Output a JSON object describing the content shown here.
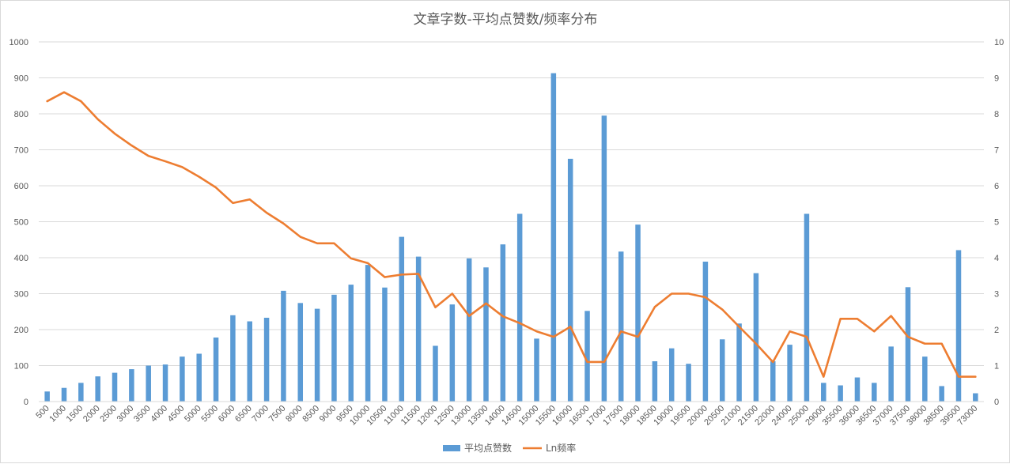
{
  "chart_data": {
    "type": "bar",
    "title": "文章字数-平均点赞数/频率分布",
    "xlabel": "",
    "ylabel": "",
    "ylim": [
      0,
      1000
    ],
    "y2lim": [
      0,
      10
    ],
    "y_ticks": [
      "0",
      "100",
      "200",
      "300",
      "400",
      "500",
      "600",
      "700",
      "800",
      "900",
      "1000"
    ],
    "y2_ticks": [
      "0",
      "1",
      "2",
      "3",
      "4",
      "5",
      "6",
      "7",
      "8",
      "9",
      "10"
    ],
    "grid": true,
    "legend_position": "bottom",
    "categories": [
      "500",
      "1000",
      "1500",
      "2000",
      "2500",
      "3000",
      "3500",
      "4000",
      "4500",
      "5000",
      "5500",
      "6000",
      "6500",
      "7000",
      "7500",
      "8000",
      "8500",
      "9000",
      "9500",
      "10000",
      "10500",
      "11000",
      "11500",
      "12000",
      "12500",
      "13000",
      "13500",
      "14000",
      "14500",
      "15000",
      "15500",
      "16000",
      "16500",
      "17000",
      "17500",
      "18000",
      "18500",
      "19000",
      "19500",
      "20000",
      "20500",
      "21000",
      "21500",
      "22000",
      "24000",
      "25000",
      "29000",
      "35500",
      "36000",
      "36500",
      "37000",
      "37500",
      "38000",
      "38500",
      "39500",
      "73000"
    ],
    "series": [
      {
        "name": "平均点赞数",
        "type": "bar",
        "axis": "left",
        "color": "#5b9bd5",
        "values": [
          28,
          38,
          52,
          70,
          80,
          90,
          100,
          103,
          125,
          133,
          178,
          240,
          223,
          233,
          308,
          274,
          258,
          297,
          325,
          380,
          317,
          458,
          403,
          155,
          270,
          398,
          373,
          437,
          522,
          175,
          913,
          675,
          252,
          795,
          417,
          492,
          112,
          148,
          105,
          389,
          173,
          217,
          357,
          112,
          158,
          522,
          52,
          45,
          67,
          52,
          153,
          318,
          125,
          43,
          421,
          23
        ]
      },
      {
        "name": "Ln频率",
        "type": "line",
        "axis": "right",
        "color": "#ed7d31",
        "values": [
          8.35,
          8.6,
          8.35,
          7.85,
          7.45,
          7.12,
          6.83,
          6.68,
          6.52,
          6.25,
          5.95,
          5.52,
          5.62,
          5.25,
          4.95,
          4.58,
          4.4,
          4.4,
          3.98,
          3.85,
          3.46,
          3.53,
          3.55,
          2.62,
          3.0,
          2.38,
          2.73,
          2.37,
          2.18,
          1.95,
          1.8,
          2.08,
          1.1,
          1.1,
          1.95,
          1.8,
          2.63,
          3.0,
          3.0,
          2.9,
          2.56,
          2.08,
          1.61,
          1.1,
          1.95,
          1.8,
          0.69,
          2.3,
          2.3,
          1.95,
          2.38,
          1.8,
          1.61,
          1.61,
          0.69,
          0.69
        ]
      }
    ]
  }
}
